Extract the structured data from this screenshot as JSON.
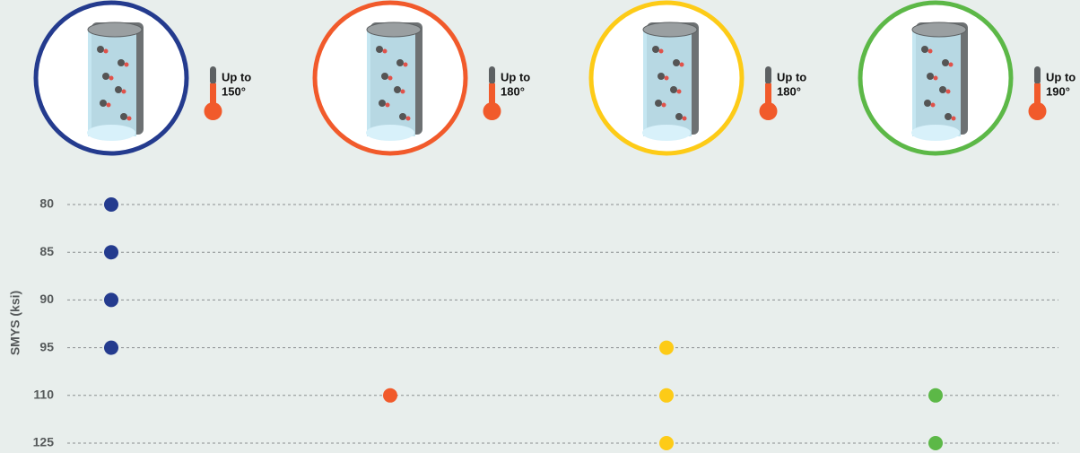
{
  "y_axis_label": "SMYS (ksi)",
  "grades": [
    80,
    85,
    90,
    95,
    110,
    125
  ],
  "columns": [
    {
      "color": "#243b8e",
      "temperature": [
        "Up to",
        "150°"
      ],
      "grades": [
        80,
        85,
        90,
        95
      ]
    },
    {
      "color": "#f15a2b",
      "temperature": [
        "Up to",
        "180°"
      ],
      "grades": [
        110
      ]
    },
    {
      "color": "#fdcb17",
      "temperature": [
        "Up to",
        "180°"
      ],
      "grades": [
        95,
        110,
        125
      ]
    },
    {
      "color": "#5cb847",
      "temperature": [
        "Up to",
        "190°"
      ],
      "grades": [
        110,
        125
      ]
    }
  ]
}
